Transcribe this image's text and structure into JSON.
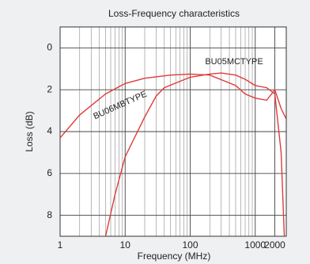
{
  "chart_data": {
    "type": "line",
    "title": "Loss-Frequency characteristics",
    "x_label": "Frequency (MHz)",
    "y_label": "Loss (dB)",
    "x_log": true,
    "y_inverted": true,
    "grid": true,
    "xlim": [
      1,
      3000
    ],
    "ylim": [
      -1,
      9
    ],
    "xticks": [
      1,
      10,
      100,
      1000,
      2000
    ],
    "x_minor_ticks": [
      2,
      3,
      4,
      5,
      6,
      7,
      8,
      9,
      20,
      30,
      40,
      50,
      60,
      70,
      80,
      90,
      200,
      300,
      400,
      500,
      600,
      700,
      800,
      900,
      3000
    ],
    "yticks": [
      0,
      2,
      4,
      6,
      8
    ],
    "series": [
      {
        "name": "BU06MBTYPE",
        "color": "#e03a3a",
        "x": [
          1,
          2,
          5,
          10,
          20,
          50,
          100,
          200,
          500,
          700,
          1000,
          1500,
          2000,
          2500,
          3000
        ],
        "values": [
          4.3,
          3.2,
          2.2,
          1.7,
          1.45,
          1.3,
          1.25,
          1.3,
          1.8,
          2.2,
          2.4,
          2.5,
          2.0,
          2.9,
          3.4
        ]
      },
      {
        "name": "BU05MCTYPE",
        "color": "#e03a3a",
        "x": [
          5,
          7,
          10,
          20,
          30,
          40,
          100,
          200,
          300,
          500,
          700,
          1000,
          1500,
          2000,
          2500,
          2800
        ],
        "values": [
          9,
          7,
          5.2,
          3.3,
          2.3,
          1.9,
          1.4,
          1.25,
          1.2,
          1.3,
          1.5,
          1.8,
          1.9,
          2.2,
          5,
          9
        ]
      }
    ]
  }
}
